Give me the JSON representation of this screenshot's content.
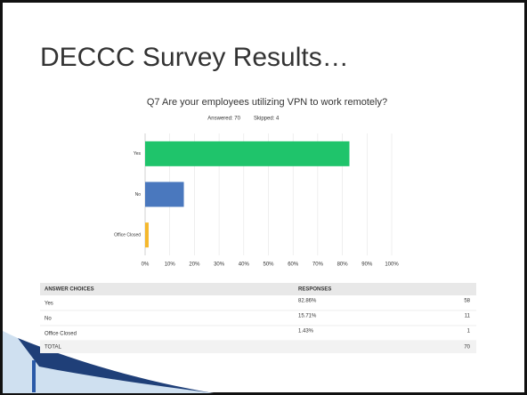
{
  "title": "DECCC Survey Results…",
  "chart_data": {
    "type": "hbar",
    "title": "Q7 Are your employees utilizing VPN to work remotely?",
    "answered": "Answered: 70",
    "skipped": "Skipped: 4",
    "categories": [
      "Yes",
      "No",
      "Office Closed"
    ],
    "values": [
      82.86,
      15.71,
      1.43
    ],
    "colors": [
      "#1fc46b",
      "#4a78be",
      "#f5b82c"
    ],
    "xlim": [
      0,
      100
    ],
    "xticks": [
      {
        "value": 0,
        "label": "0%"
      },
      {
        "value": 10,
        "label": "10%"
      },
      {
        "value": 20,
        "label": "20%"
      },
      {
        "value": 30,
        "label": "30%"
      },
      {
        "value": 40,
        "label": "40%"
      },
      {
        "value": 50,
        "label": "50%"
      },
      {
        "value": 60,
        "label": "60%"
      },
      {
        "value": 70,
        "label": "70%"
      },
      {
        "value": 80,
        "label": "80%"
      },
      {
        "value": 90,
        "label": "90%"
      },
      {
        "value": 100,
        "label": "100%"
      }
    ],
    "grid": true
  },
  "table": {
    "header": [
      "ANSWER CHOICES",
      "RESPONSES"
    ],
    "rows": [
      [
        "Yes",
        "82.86%",
        "58"
      ],
      [
        "No",
        "15.71%",
        "11"
      ],
      [
        "Office Closed",
        "1.43%",
        "1"
      ]
    ],
    "total": [
      "TOTAL",
      "70"
    ]
  }
}
